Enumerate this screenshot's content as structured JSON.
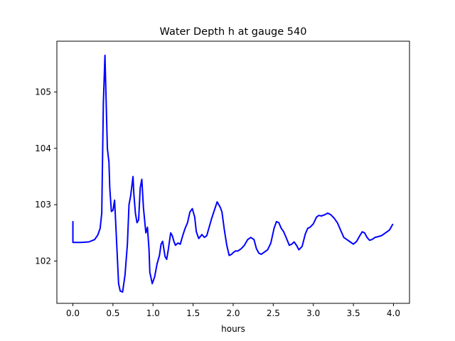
{
  "chart_data": {
    "type": "line",
    "title": "Water Depth h at gauge 540",
    "xlabel": "hours",
    "ylabel": "",
    "xlim": [
      -0.2,
      4.2
    ],
    "ylim": [
      101.25,
      105.9
    ],
    "xticks": [
      0.0,
      0.5,
      1.0,
      1.5,
      2.0,
      2.5,
      3.0,
      3.5,
      4.0
    ],
    "xtick_labels": [
      "0.0",
      "0.5",
      "1.0",
      "1.5",
      "2.0",
      "2.5",
      "3.0",
      "3.5",
      "4.0"
    ],
    "yticks": [
      102,
      103,
      104,
      105
    ],
    "ytick_labels": [
      "102",
      "103",
      "104",
      "105"
    ],
    "grid": false,
    "series": [
      {
        "color": "#0000ff",
        "x": [
          0.0,
          0.0,
          0.1,
          0.2,
          0.27,
          0.31,
          0.34,
          0.36,
          0.38,
          0.4,
          0.41,
          0.43,
          0.45,
          0.46,
          0.48,
          0.5,
          0.52,
          0.53,
          0.55,
          0.57,
          0.59,
          0.62,
          0.65,
          0.68,
          0.7,
          0.72,
          0.75,
          0.76,
          0.78,
          0.8,
          0.82,
          0.84,
          0.86,
          0.88,
          0.9,
          0.91,
          0.93,
          0.95,
          0.96,
          0.99,
          1.02,
          1.05,
          1.08,
          1.1,
          1.12,
          1.15,
          1.17,
          1.19,
          1.22,
          1.24,
          1.26,
          1.28,
          1.31,
          1.34,
          1.37,
          1.4,
          1.43,
          1.46,
          1.49,
          1.52,
          1.54,
          1.57,
          1.61,
          1.64,
          1.67,
          1.7,
          1.73,
          1.76,
          1.8,
          1.84,
          1.86,
          1.89,
          1.92,
          1.95,
          1.98,
          2.0,
          2.03,
          2.06,
          2.1,
          2.14,
          2.18,
          2.22,
          2.26,
          2.29,
          2.32,
          2.35,
          2.39,
          2.43,
          2.47,
          2.51,
          2.54,
          2.57,
          2.6,
          2.63,
          2.66,
          2.7,
          2.73,
          2.76,
          2.79,
          2.82,
          2.86,
          2.9,
          2.93,
          2.96,
          3.0,
          3.04,
          3.07,
          3.1,
          3.14,
          3.18,
          3.22,
          3.26,
          3.3,
          3.34,
          3.38,
          3.42,
          3.46,
          3.5,
          3.54,
          3.58,
          3.61,
          3.64,
          3.67,
          3.7,
          3.73,
          3.77,
          3.8,
          3.85,
          3.9,
          3.95,
          3.99
        ],
        "y": [
          102.7,
          102.33,
          102.33,
          102.34,
          102.38,
          102.46,
          102.58,
          102.85,
          104.8,
          105.65,
          105.1,
          104.0,
          103.75,
          103.3,
          102.88,
          102.9,
          103.08,
          102.8,
          102.2,
          101.6,
          101.47,
          101.45,
          101.75,
          102.3,
          103.0,
          103.15,
          103.5,
          103.2,
          102.85,
          102.68,
          102.73,
          103.3,
          103.45,
          102.95,
          102.65,
          102.5,
          102.6,
          102.2,
          101.8,
          101.6,
          101.72,
          101.95,
          102.1,
          102.3,
          102.35,
          102.08,
          102.03,
          102.2,
          102.5,
          102.45,
          102.35,
          102.28,
          102.32,
          102.3,
          102.45,
          102.58,
          102.68,
          102.87,
          102.93,
          102.78,
          102.52,
          102.4,
          102.47,
          102.42,
          102.45,
          102.6,
          102.75,
          102.88,
          103.05,
          102.95,
          102.87,
          102.55,
          102.28,
          102.1,
          102.12,
          102.15,
          102.18,
          102.18,
          102.22,
          102.28,
          102.38,
          102.42,
          102.38,
          102.22,
          102.14,
          102.12,
          102.16,
          102.2,
          102.32,
          102.58,
          102.7,
          102.68,
          102.58,
          102.52,
          102.42,
          102.28,
          102.3,
          102.34,
          102.28,
          102.2,
          102.26,
          102.48,
          102.58,
          102.6,
          102.66,
          102.78,
          102.81,
          102.8,
          102.82,
          102.85,
          102.82,
          102.76,
          102.68,
          102.55,
          102.42,
          102.38,
          102.34,
          102.3,
          102.35,
          102.45,
          102.52,
          102.5,
          102.42,
          102.37,
          102.38,
          102.42,
          102.43,
          102.45,
          102.5,
          102.55,
          102.65
        ]
      }
    ]
  }
}
